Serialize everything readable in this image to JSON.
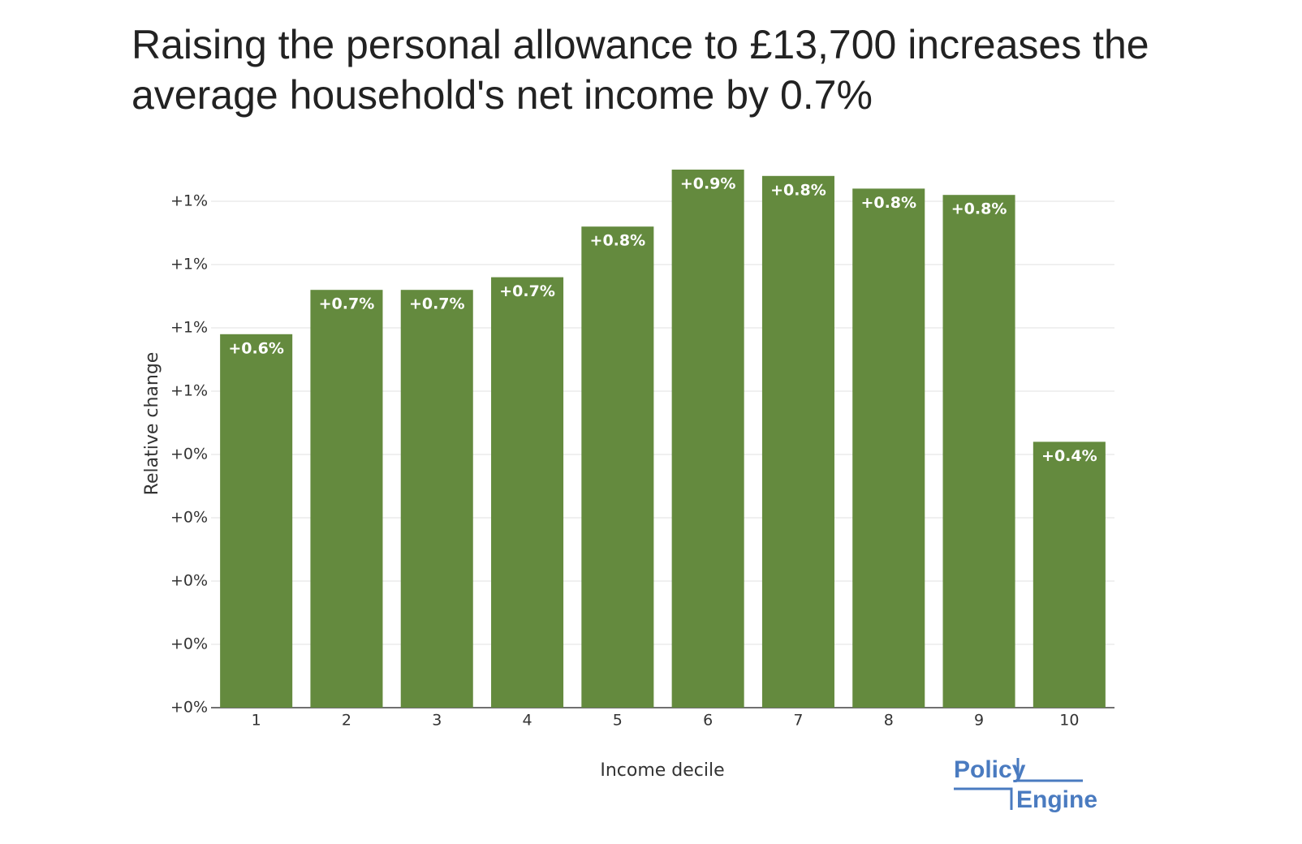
{
  "chart_data": {
    "type": "bar",
    "title": "Raising the personal allowance to £13,700 increases the average household's net income by 0.7%",
    "x_label": "Income decile",
    "y_label": "Relative change",
    "categories": [
      "1",
      "2",
      "3",
      "4",
      "5",
      "6",
      "7",
      "8",
      "9",
      "10"
    ],
    "values": [
      0.59,
      0.66,
      0.66,
      0.68,
      0.76,
      0.85,
      0.84,
      0.82,
      0.81,
      0.42
    ],
    "value_labels": [
      "+0.6%",
      "+0.7%",
      "+0.7%",
      "+0.7%",
      "+0.8%",
      "+0.9%",
      "+0.8%",
      "+0.8%",
      "+0.8%",
      "+0.4%"
    ],
    "color": "#648a3e",
    "ylim": [
      0,
      0.85
    ],
    "yticks": [
      {
        "value": 0,
        "label": "+0%"
      },
      {
        "value": 0.1,
        "label": "+0%"
      },
      {
        "value": 0.2,
        "label": "+0%"
      },
      {
        "value": 0.3,
        "label": "+0%"
      },
      {
        "value": 0.4,
        "label": "+0%"
      },
      {
        "value": 0.5,
        "label": "+1%"
      },
      {
        "value": 0.6,
        "label": "+1%"
      },
      {
        "value": 0.7,
        "label": "+1%"
      },
      {
        "value": 0.8,
        "label": "+1%"
      }
    ],
    "grid": true,
    "logo": [
      "Policy",
      "Engine"
    ]
  }
}
